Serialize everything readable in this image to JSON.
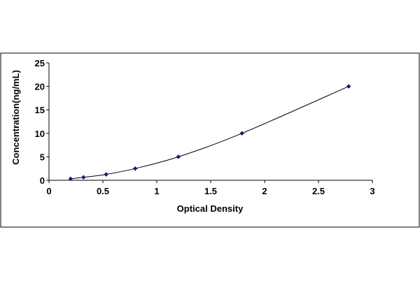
{
  "chart_data": {
    "type": "scatter",
    "title": "",
    "xlabel": "Optical Density",
    "ylabel": "Concentration(ng/mL)",
    "xlim": [
      0,
      3
    ],
    "ylim": [
      0,
      25
    ],
    "x_ticks": [
      "0",
      "0.5",
      "1",
      "1.5",
      "2",
      "2.5",
      "3"
    ],
    "y_ticks": [
      "0",
      "5",
      "10",
      "15",
      "20",
      "25"
    ],
    "grid": false,
    "legend": "none",
    "trendline": "smooth curve through points",
    "series": [
      {
        "x": [
          0.2,
          0.32,
          0.53,
          0.8,
          1.2,
          1.79,
          2.78
        ],
        "y": [
          0.31,
          0.63,
          1.25,
          2.5,
          5,
          10,
          20
        ]
      }
    ],
    "colors": {
      "marker": "#1a1a6e",
      "curve": "#000000",
      "axis": "#000000",
      "frame": "#000000"
    }
  }
}
